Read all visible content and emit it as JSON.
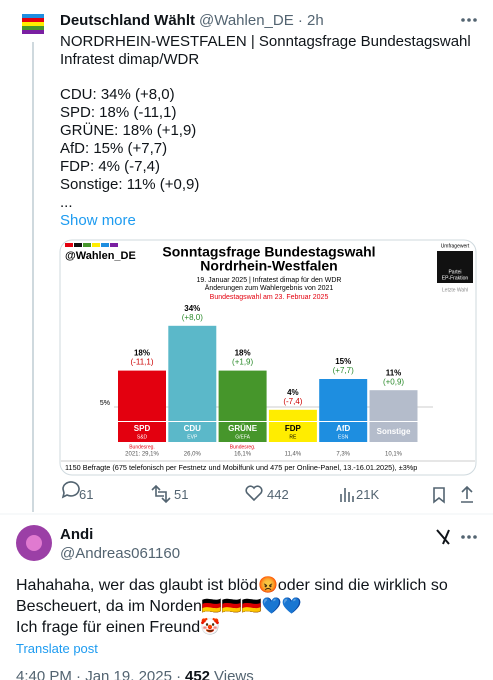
{
  "post": {
    "author": "Deutschland Wählt",
    "handle": "@Wahlen_DE · 2h",
    "paragraphs": [
      [
        "NORDRHEIN-WESTFALEN | Sonntagsfrage Bundestagswahl",
        "Infratest dimap/WDR"
      ],
      [
        "CDU: 34% (+8,0)",
        "SPD: 18% (-11,1)",
        "GRÜNE: 18% (+1,9)",
        "AfD: 15% (+7,7)",
        "FDP: 4% (-7,4)",
        "Sonstige: 11% (+0,9)",
        "..."
      ]
    ],
    "show_more": "Show more",
    "stats": {
      "replies": 61,
      "reposts": 51,
      "likes": 442,
      "views": "21K"
    }
  },
  "chart": {
    "type": "bar",
    "handle": "@Wahlen_DE",
    "title": "Sonntagsfrage Bundestagswahl",
    "subtitle": "Nordrhein-Westfalen",
    "date_line": "19. Januar 2025 | Infratest dimap für den WDR",
    "change_line": "Änderungen zum Wahlergebnis von 2021",
    "election_line": "Bundestagswahl am 23. Februar 2025",
    "legend": {
      "poll": "Umfragewert",
      "party": "Partei",
      "group": "EP-Fraktion",
      "last": "Letzte Wahl"
    },
    "categories": [
      "SPD",
      "CDU",
      "GRÜNE",
      "FDP",
      "AfD",
      "Sonstige"
    ],
    "groups": [
      "S&D",
      "EVP",
      "G/EFA",
      "RE",
      "ESN",
      null
    ],
    "values": [
      18,
      34,
      18,
      4,
      15,
      11
    ],
    "value_labels": [
      "18%",
      "34%",
      "18%",
      "4%",
      "15%",
      "11%"
    ],
    "changes": [
      "(-11,1)",
      "(+8,0)",
      "(+1,9)",
      "(-7,4)",
      "(+7,7)",
      "(+0,9)"
    ],
    "colors": [
      "#e3000f",
      "#5bb8c9",
      "#46962b",
      "#ffed00",
      "#1e8ee0",
      "#b4bccb"
    ],
    "notes": [
      "Bundesreg.",
      null,
      "Bundesreg.",
      null,
      null,
      null
    ],
    "previous": [
      "2021: 29,1%",
      "26,0%",
      "16,1%",
      "11,4%",
      "7,3%",
      "10,1%"
    ],
    "reference": {
      "value": 5,
      "label": "5%"
    },
    "footnote": "1150 Befragte (675 telefonisch per Festnetz und Mobilfunk und 475 per Online-Panel, 13.-16.01.2025), ±3%p"
  },
  "reply": {
    "author": "Andi",
    "handle": "@Andreas061160",
    "lines": [
      "Hahahaha, wer das glaubt ist blöd😡oder sind die wirklich so",
      "Bescheuert, da im Norden🇩🇪🇩🇪🇩🇪💙💙",
      "Ich frage für einen Freund🤡"
    ],
    "translate": "Translate post",
    "timestamp": "4:40 PM · Jan 19, 2025 ·",
    "views": 452,
    "views_label": "Views"
  }
}
